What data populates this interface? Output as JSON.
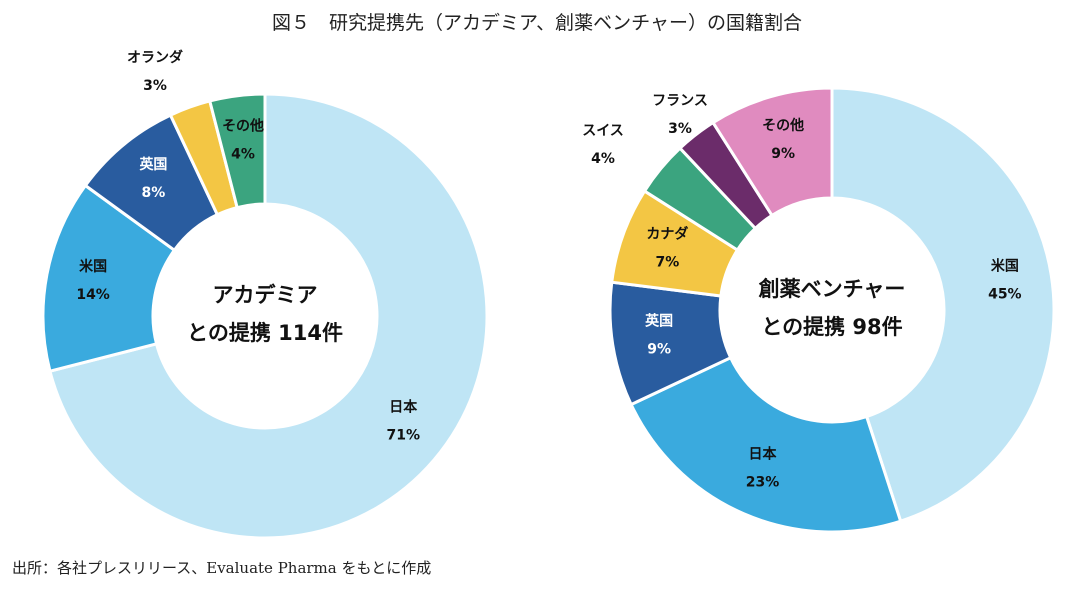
{
  "title": "図５　研究提携先（アカデミア、創薬ベンチャー）の国籍割合",
  "source": "出所：各社プレスリリース、Evaluate Pharma をもとに作成",
  "chart_data": [
    {
      "type": "pie",
      "donut": true,
      "center_label": [
        "アカデミア",
        "との提携 114件"
      ],
      "slices": [
        {
          "label": "日本",
          "value": 71,
          "color": "#bfe5f5"
        },
        {
          "label": "米国",
          "value": 14,
          "color": "#3aaade"
        },
        {
          "label": "英国",
          "value": 8,
          "color": "#295c9f"
        },
        {
          "label": "オランダ",
          "value": 3,
          "color": "#f3c644"
        },
        {
          "label": "その他",
          "value": 4,
          "color": "#3ba47f"
        }
      ]
    },
    {
      "type": "pie",
      "donut": true,
      "center_label": [
        "創薬ベンチャー",
        "との提携 98件"
      ],
      "slices": [
        {
          "label": "米国",
          "value": 45,
          "color": "#bfe5f5"
        },
        {
          "label": "日本",
          "value": 23,
          "color": "#3aaade"
        },
        {
          "label": "英国",
          "value": 9,
          "color": "#295c9f"
        },
        {
          "label": "カナダ",
          "value": 7,
          "color": "#f3c644"
        },
        {
          "label": "スイス",
          "value": 4,
          "color": "#3ba47f"
        },
        {
          "label": "フランス",
          "value": 3,
          "color": "#6b2c6a"
        },
        {
          "label": "その他",
          "value": 9,
          "color": "#e08bbf"
        }
      ]
    }
  ]
}
